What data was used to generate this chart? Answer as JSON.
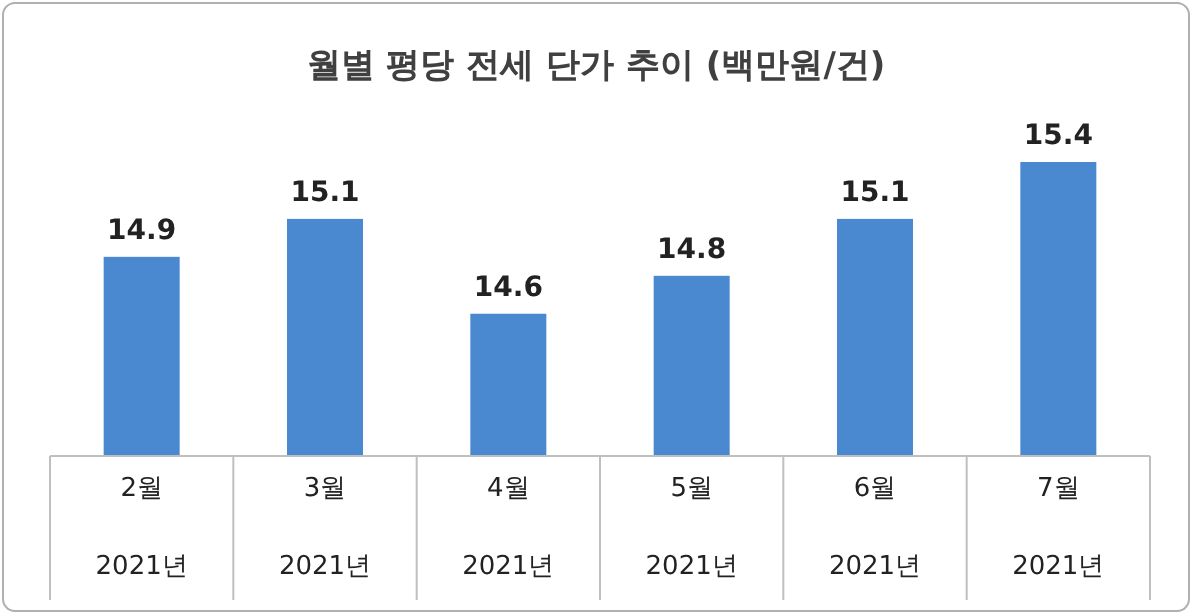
{
  "chart_data": {
    "type": "bar",
    "title": "월별 평당 전세 단가 추이 (백만원/건)",
    "categories": [
      "2월\n2021년",
      "3월\n2021년",
      "4월\n2021년",
      "5월\n2021년",
      "6월\n2021년",
      "7월\n2021년"
    ],
    "values": [
      14.9,
      15.1,
      14.6,
      14.8,
      15.1,
      15.4
    ],
    "color": "#4a88d0",
    "ylim": [
      13.85,
      15.4
    ],
    "tick_labels": "x",
    "data_labels": true
  }
}
